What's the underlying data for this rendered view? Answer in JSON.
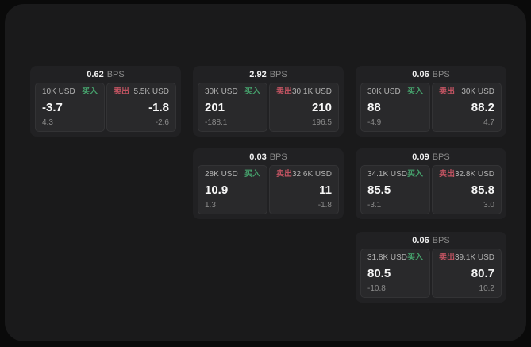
{
  "labels": {
    "bps_unit": "BPS",
    "buy": "买入",
    "sell": "卖出"
  },
  "colors": {
    "buy_green": "#46a16c",
    "sell_red": "#c05361",
    "window_bg": "#1a1a1b",
    "card_bg": "#212123",
    "panel_bg": "#29292b"
  },
  "cards": [
    {
      "bps": "0.62",
      "buy": {
        "notional": "10K USD",
        "price": "-3.7",
        "sub": "4.3"
      },
      "sell": {
        "notional": "5.5K USD",
        "price": "-1.8",
        "sub": "-2.6"
      }
    },
    {
      "bps": "2.92",
      "buy": {
        "notional": "30K USD",
        "price": "201",
        "sub": "-188.1"
      },
      "sell": {
        "notional": "30.1K USD",
        "price": "210",
        "sub": "196.5"
      }
    },
    {
      "bps": "0.06",
      "buy": {
        "notional": "30K USD",
        "price": "88",
        "sub": "-4.9"
      },
      "sell": {
        "notional": "30K USD",
        "price": "88.2",
        "sub": "4.7"
      }
    },
    {
      "bps": "0.03",
      "buy": {
        "notional": "28K USD",
        "price": "10.9",
        "sub": "1.3"
      },
      "sell": {
        "notional": "32.6K USD",
        "price": "11",
        "sub": "-1.8"
      }
    },
    {
      "bps": "0.09",
      "buy": {
        "notional": "34.1K USD",
        "price": "85.5",
        "sub": "-3.1"
      },
      "sell": {
        "notional": "32.8K USD",
        "price": "85.8",
        "sub": "3.0"
      }
    },
    {
      "bps": "0.06",
      "buy": {
        "notional": "31.8K USD",
        "price": "80.5",
        "sub": "-10.8"
      },
      "sell": {
        "notional": "39.1K USD",
        "price": "80.7",
        "sub": "10.2"
      }
    }
  ]
}
